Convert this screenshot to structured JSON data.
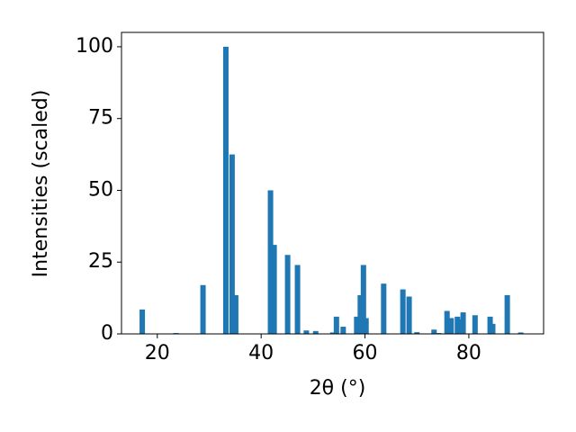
{
  "chart_data": {
    "type": "bar",
    "xlabel": "2θ (°)",
    "ylabel": "Intensities (scaled)",
    "color": "#1f77b4",
    "x": [
      17.1,
      23.6,
      28.8,
      33.2,
      34.4,
      35.1,
      41.8,
      42.5,
      45.1,
      47.0,
      48.7,
      50.5,
      53.8,
      54.5,
      55.8,
      58.4,
      59.1,
      59.7,
      60.2,
      63.6,
      67.3,
      68.5,
      70.0,
      73.3,
      74.2,
      75.8,
      76.6,
      77.8,
      78.2,
      78.9,
      81.2,
      84.1,
      84.6,
      87.4,
      90.0
    ],
    "values": [
      8.5,
      0.3,
      17,
      100,
      62.5,
      13.5,
      50,
      31,
      27.5,
      24,
      1.2,
      1,
      0.5,
      6,
      2.5,
      6,
      13.5,
      24,
      5.5,
      17.5,
      15.5,
      13,
      0.6,
      1.5,
      0.3,
      8,
      5.5,
      6,
      5,
      7.5,
      6.5,
      6,
      3.5,
      13.5,
      0.5
    ],
    "xlim": [
      13.1,
      94.4
    ],
    "ylim": [
      0,
      105
    ],
    "xticks": [
      20,
      40,
      60,
      80
    ],
    "yticks": [
      0,
      25,
      50,
      75,
      100
    ]
  }
}
